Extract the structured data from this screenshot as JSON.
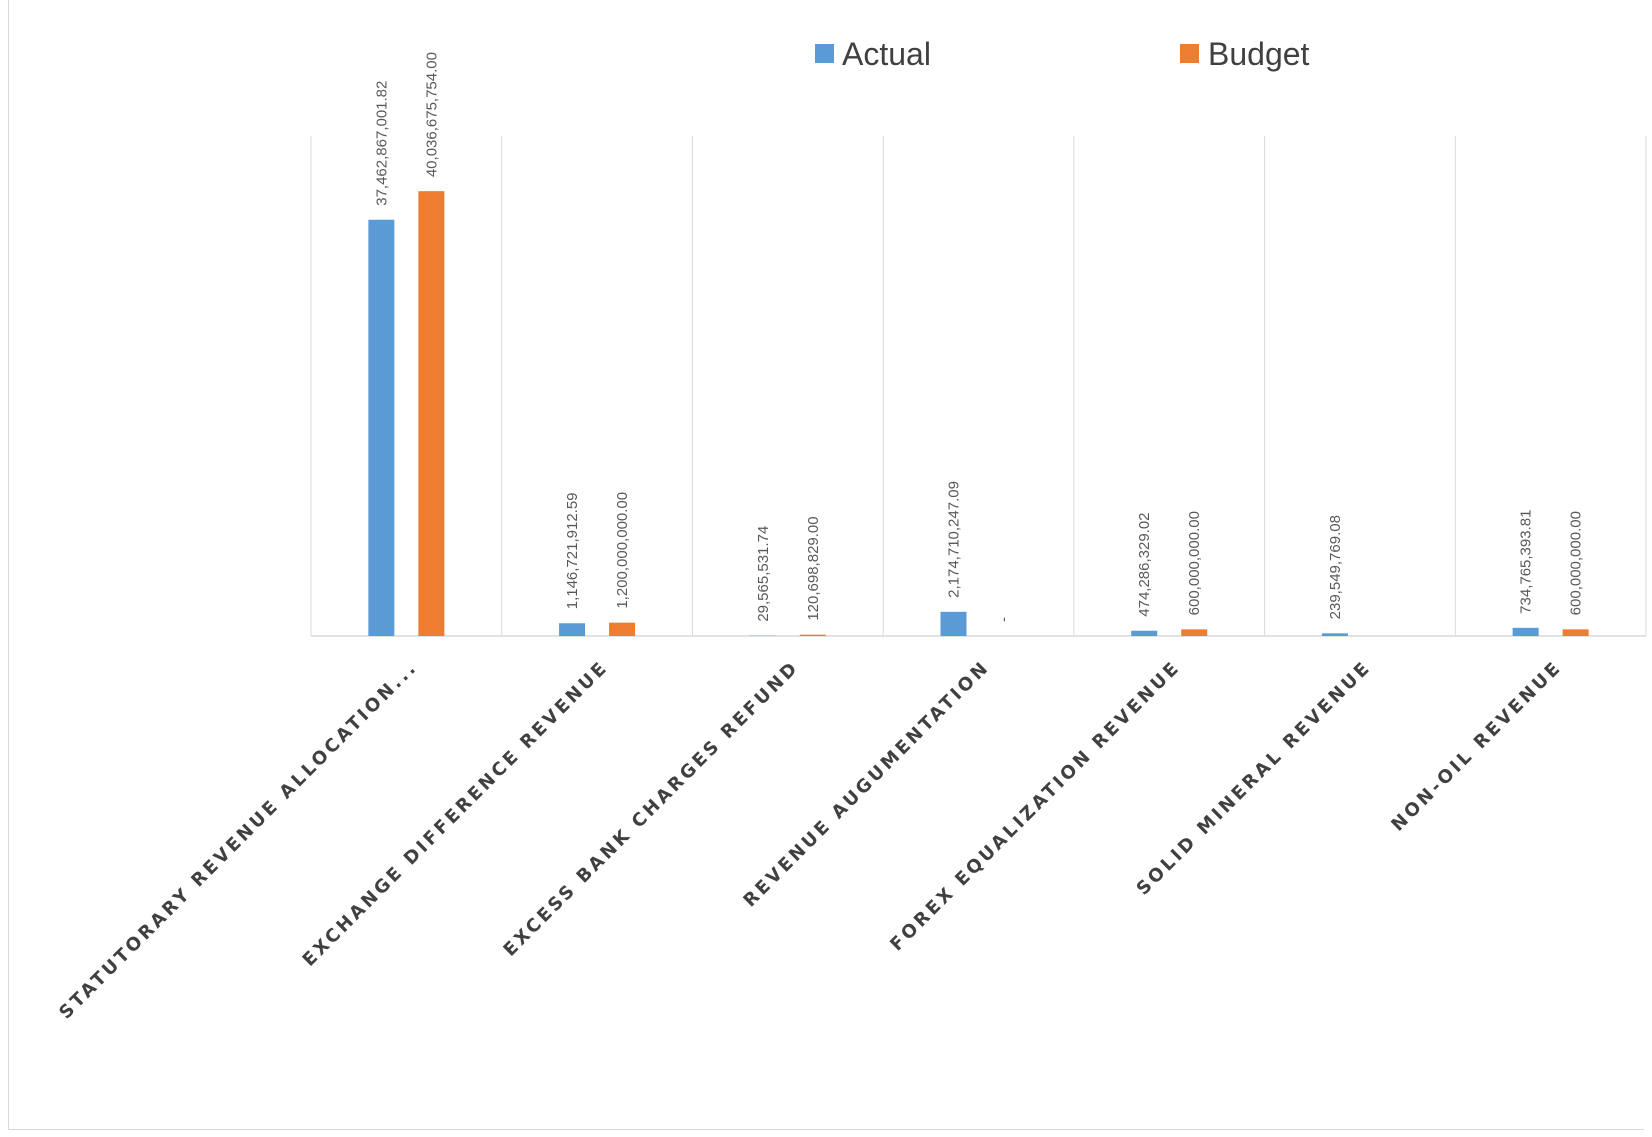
{
  "chart_data": {
    "type": "bar",
    "title": "",
    "xlabel": "",
    "ylabel": "",
    "ylim": [
      0,
      45000000000
    ],
    "grid": "vertical category separators",
    "legend_position": "top",
    "categories": [
      "STATUTORARY REVENUE ALLOCATION...",
      "EXCHANGE DIFFERENCE REVENUE",
      "EXCESS BANK CHARGES REFUND",
      "REVENUE AUGUMENTATION",
      "FOREX EQUALIZATION REVENUE",
      "SOLID MINERAL REVENUE",
      "NON-OIL REVENUE"
    ],
    "series": [
      {
        "name": "Actual",
        "color": "#5b9bd5",
        "values": [
          37462867001.82,
          1146721912.59,
          29565531.74,
          2174710247.09,
          474286329.02,
          239549769.08,
          734765393.81
        ],
        "labels": [
          "37,462,867,001.82",
          "1,146,721,912.59",
          "29,565,531.74",
          "2,174,710,247.09",
          "474,286,329.02",
          "239,549,769.08",
          "734,765,393.81"
        ]
      },
      {
        "name": "Budget",
        "color": "#ed7d31",
        "values": [
          40036675754.0,
          1200000000.0,
          120698829.0,
          0,
          600000000.0,
          0,
          600000000.0
        ],
        "labels": [
          "40,036,675,754.00",
          "1,200,000,000.00",
          "120,698,829.00",
          "-",
          "600,000,000.00",
          "",
          "600,000,000.00"
        ]
      }
    ]
  }
}
